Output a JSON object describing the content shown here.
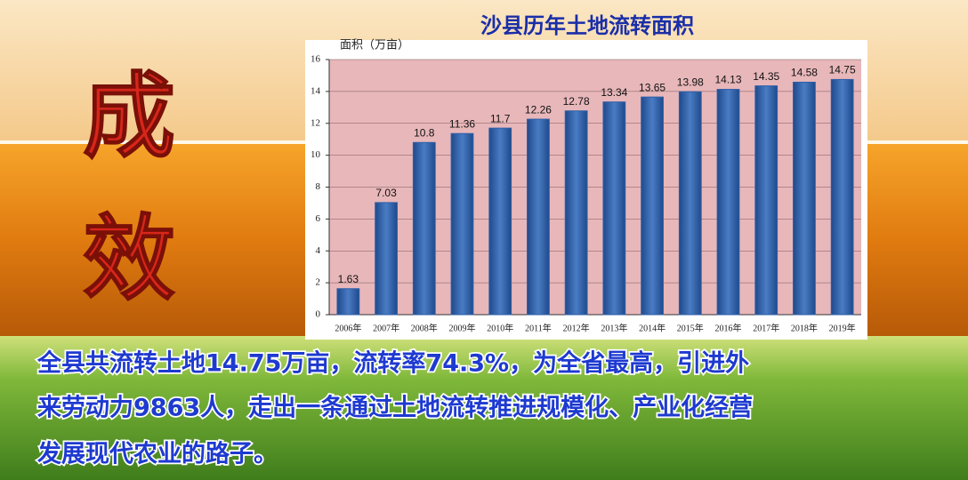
{
  "chart_data": {
    "type": "bar",
    "title": "沙县历年土地流转面积",
    "y_label": "面积（万亩）",
    "categories": [
      "2006年",
      "2007年",
      "2008年",
      "2009年",
      "2010年",
      "2011年",
      "2012年",
      "2013年",
      "2014年",
      "2015年",
      "2016年",
      "2017年",
      "2018年",
      "2019年"
    ],
    "values": [
      1.63,
      7.03,
      10.8,
      11.36,
      11.7,
      12.26,
      12.78,
      13.34,
      13.65,
      13.98,
      14.13,
      14.35,
      14.58,
      14.75
    ],
    "color": "#2e5fa8",
    "ylim": [
      0,
      16
    ],
    "yticks": [
      0,
      2,
      4,
      6,
      8,
      10,
      12,
      14,
      16
    ],
    "grid": true
  },
  "slide": {
    "heading": [
      "成",
      "效"
    ],
    "body": [
      "全县共流转土地14.75万亩，流转率74.3%，为全省最高，引进外",
      "来劳动力9863人，走出一条通过土地流转推进规模化、产业化经营",
      "发展现代农业的路子。"
    ]
  }
}
